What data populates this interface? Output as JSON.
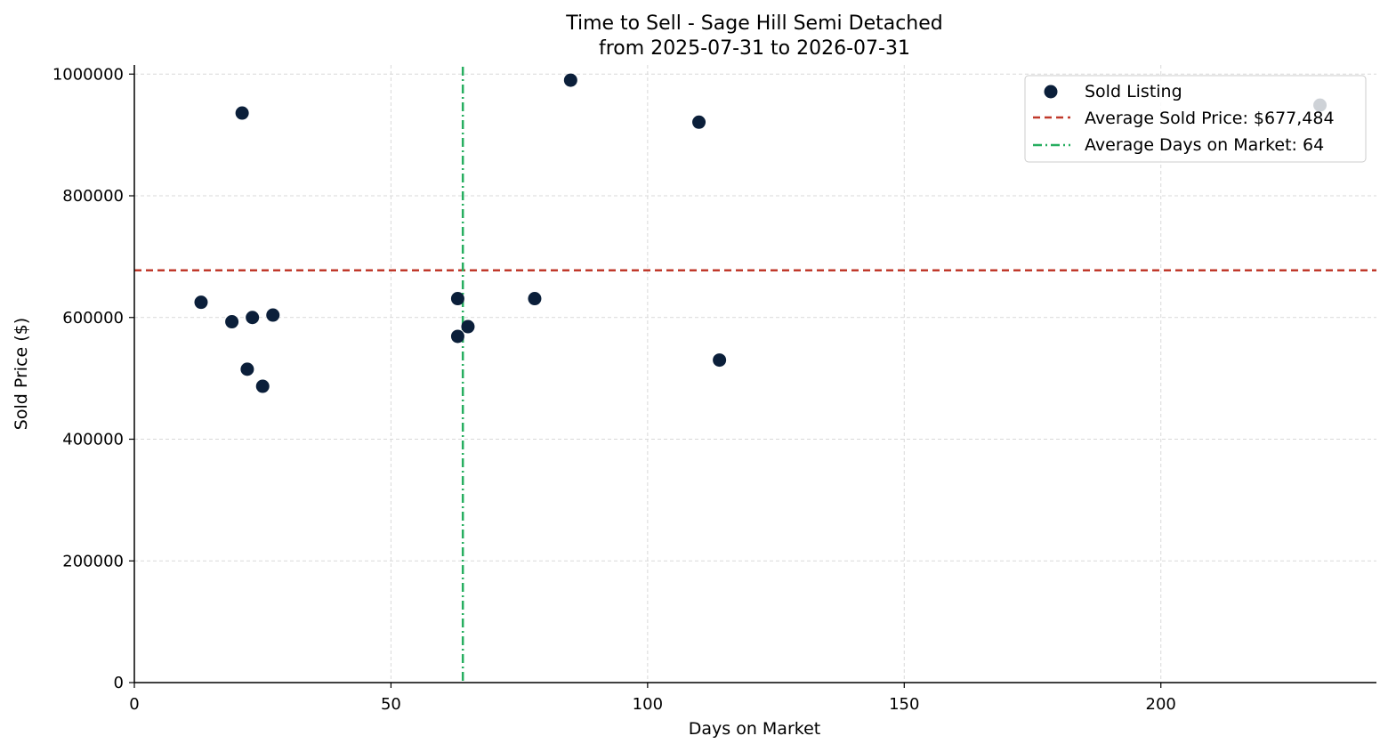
{
  "chart_data": {
    "type": "scatter",
    "title": "Time to Sell - Sage Hill Semi Detached",
    "subtitle": "from 2025-07-31 to 2026-07-31",
    "xlabel": "Days on Market",
    "ylabel": "Sold Price ($)",
    "xlim": [
      0,
      242
    ],
    "ylim": [
      0,
      1015000
    ],
    "xticks": [
      0,
      50,
      100,
      150,
      200
    ],
    "yticks": [
      0,
      200000,
      400000,
      600000,
      800000,
      1000000
    ],
    "grid": true,
    "legend_position": "top-right",
    "series": [
      {
        "name": "Sold Listing",
        "color": "#0b1f3a",
        "points": [
          {
            "x": 13,
            "y": 625000
          },
          {
            "x": 19,
            "y": 593000
          },
          {
            "x": 21,
            "y": 936000
          },
          {
            "x": 22,
            "y": 515000
          },
          {
            "x": 23,
            "y": 600000
          },
          {
            "x": 25,
            "y": 487000
          },
          {
            "x": 27,
            "y": 604000
          },
          {
            "x": 63,
            "y": 631000
          },
          {
            "x": 63,
            "y": 569000
          },
          {
            "x": 65,
            "y": 585000
          },
          {
            "x": 78,
            "y": 631000
          },
          {
            "x": 85,
            "y": 990000
          },
          {
            "x": 110,
            "y": 921000
          },
          {
            "x": 114,
            "y": 530000
          },
          {
            "x": 231,
            "y": 949000
          }
        ]
      }
    ],
    "reference_lines": [
      {
        "name": "Average Sold Price: $677,484",
        "orientation": "horizontal",
        "value": 677484,
        "color": "#c0392b",
        "style": "dashed"
      },
      {
        "name": "Average Days on Market: 64",
        "orientation": "vertical",
        "value": 64,
        "color": "#27ae60",
        "style": "dashdot"
      }
    ]
  }
}
